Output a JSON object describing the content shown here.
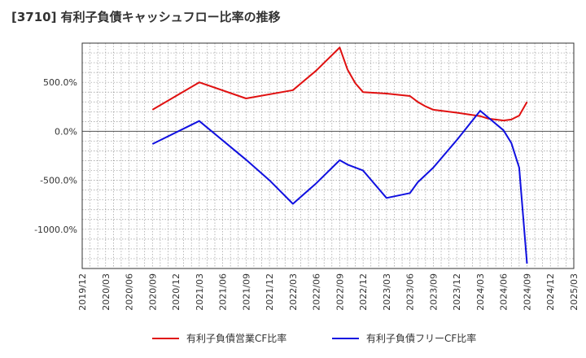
{
  "chart_data": {
    "type": "line",
    "title": "[3710]  有利子負債キャッシュフロー比率の推移",
    "xlabel": "",
    "ylabel": "",
    "ylim": [
      -1400,
      900
    ],
    "yticks": [
      {
        "value": 500,
        "label": "500.0%"
      },
      {
        "value": 0,
        "label": "0.0%"
      },
      {
        "value": -500,
        "label": "-500.0%"
      },
      {
        "value": -1000,
        "label": "-1000.0%"
      }
    ],
    "xlim": [
      "2019/12",
      "2025/03"
    ],
    "xticks": [
      "2019/12",
      "2020/03",
      "2020/06",
      "2020/09",
      "2020/12",
      "2021/03",
      "2021/06",
      "2021/09",
      "2021/12",
      "2022/03",
      "2022/06",
      "2022/09",
      "2022/12",
      "2023/03",
      "2023/06",
      "2023/09",
      "2023/12",
      "2024/03",
      "2024/06",
      "2024/09",
      "2024/12",
      "2025/03"
    ],
    "grid": true,
    "legend_position": "bottom",
    "series": [
      {
        "name": "有利子負債営業CF比率",
        "color": "#e01010",
        "points": [
          [
            "2020/09",
            220
          ],
          [
            "2021/03",
            500
          ],
          [
            "2021/09",
            335
          ],
          [
            "2022/03",
            420
          ],
          [
            "2022/06",
            620
          ],
          [
            "2022/09",
            855
          ],
          [
            "2022/10",
            630
          ],
          [
            "2022/11",
            490
          ],
          [
            "2022/12",
            400
          ],
          [
            "2023/03",
            385
          ],
          [
            "2023/06",
            360
          ],
          [
            "2023/07",
            300
          ],
          [
            "2023/08",
            255
          ],
          [
            "2023/09",
            220
          ],
          [
            "2023/12",
            190
          ],
          [
            "2024/03",
            155
          ],
          [
            "2024/04",
            130
          ],
          [
            "2024/06",
            110
          ],
          [
            "2024/07",
            120
          ],
          [
            "2024/08",
            160
          ],
          [
            "2024/09",
            300
          ]
        ]
      },
      {
        "name": "有利子負債フリーCF比率",
        "color": "#1010e0",
        "points": [
          [
            "2020/09",
            -130
          ],
          [
            "2021/03",
            105
          ],
          [
            "2021/09",
            -290
          ],
          [
            "2021/12",
            -500
          ],
          [
            "2022/03",
            -740
          ],
          [
            "2022/06",
            -530
          ],
          [
            "2022/09",
            -295
          ],
          [
            "2022/10",
            -340
          ],
          [
            "2022/12",
            -400
          ],
          [
            "2023/03",
            -680
          ],
          [
            "2023/06",
            -630
          ],
          [
            "2023/07",
            -520
          ],
          [
            "2023/09",
            -370
          ],
          [
            "2023/12",
            -90
          ],
          [
            "2024/03",
            210
          ],
          [
            "2024/06",
            10
          ],
          [
            "2024/07",
            -120
          ],
          [
            "2024/08",
            -370
          ],
          [
            "2024/09",
            -1350
          ]
        ]
      }
    ]
  }
}
